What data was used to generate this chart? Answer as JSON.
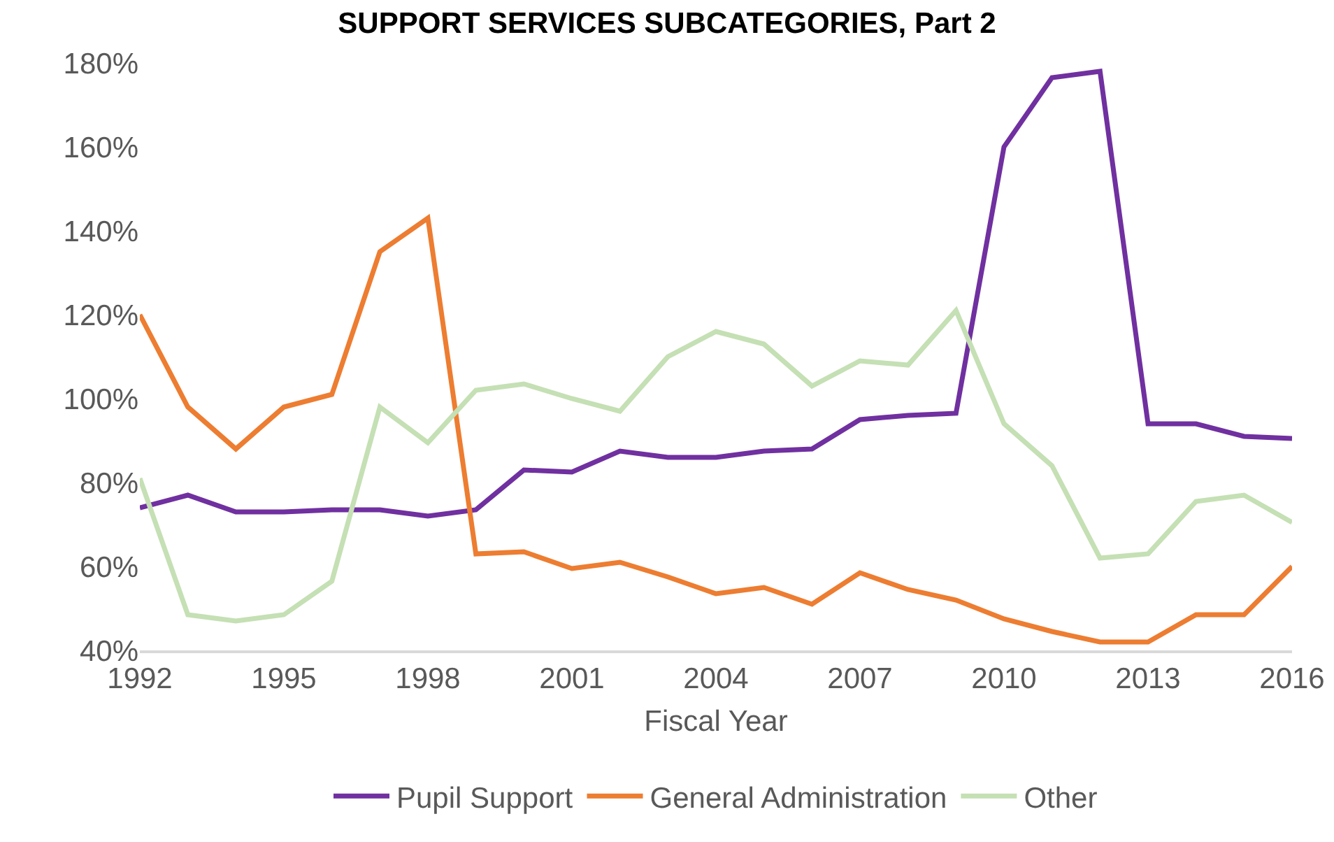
{
  "chart_data": {
    "type": "line",
    "title": "SUPPORT SERVICES SUBCATEGORIES, Part 2",
    "xlabel": "Fiscal Year",
    "x": [
      1992,
      1993,
      1994,
      1995,
      1996,
      1997,
      1998,
      1999,
      2000,
      2001,
      2002,
      2003,
      2004,
      2005,
      2006,
      2007,
      2008,
      2009,
      2010,
      2011,
      2012,
      2013,
      2014,
      2015,
      2016
    ],
    "series": [
      {
        "name": "Pupil Support",
        "color": "#7030a0",
        "values": [
          74,
          77,
          73,
          73,
          73.5,
          73.5,
          72,
          73.5,
          83,
          82.5,
          87.5,
          86,
          86,
          87.5,
          88,
          95,
          96,
          96.5,
          160,
          176.5,
          178,
          94,
          94,
          91,
          90.5
        ]
      },
      {
        "name": "General Administration",
        "color": "#ed7d31",
        "values": [
          120,
          98,
          88,
          98,
          101,
          135,
          143,
          63,
          63.5,
          59.5,
          61,
          57.5,
          53.5,
          55,
          51,
          58.5,
          54.5,
          52,
          47.5,
          44.5,
          42,
          42,
          48.5,
          48.5,
          60
        ]
      },
      {
        "name": "Other",
        "color": "#c5e0b4",
        "values": [
          81,
          48.5,
          47,
          48.5,
          56.5,
          98,
          89.5,
          102,
          103.5,
          100,
          97,
          110,
          116,
          113,
          103,
          109,
          108,
          121,
          94,
          84,
          62,
          63,
          75.5,
          77,
          70.5
        ]
      }
    ],
    "xlim": [
      1992,
      2016
    ],
    "xticks": [
      1992,
      1995,
      1998,
      2001,
      2004,
      2007,
      2010,
      2013,
      2016
    ],
    "ylim": [
      40,
      180
    ],
    "yticks": [
      {
        "value": 40,
        "label": "40%"
      },
      {
        "value": 60,
        "label": "60%"
      },
      {
        "value": 80,
        "label": "80%"
      },
      {
        "value": 100,
        "label": "100%"
      },
      {
        "value": 120,
        "label": "120%"
      },
      {
        "value": 140,
        "label": "140%"
      },
      {
        "value": 160,
        "label": "160%"
      },
      {
        "value": 180,
        "label": "180%"
      }
    ],
    "grid": false,
    "legend": "bottom",
    "marker": "none",
    "line_style": "solid"
  }
}
